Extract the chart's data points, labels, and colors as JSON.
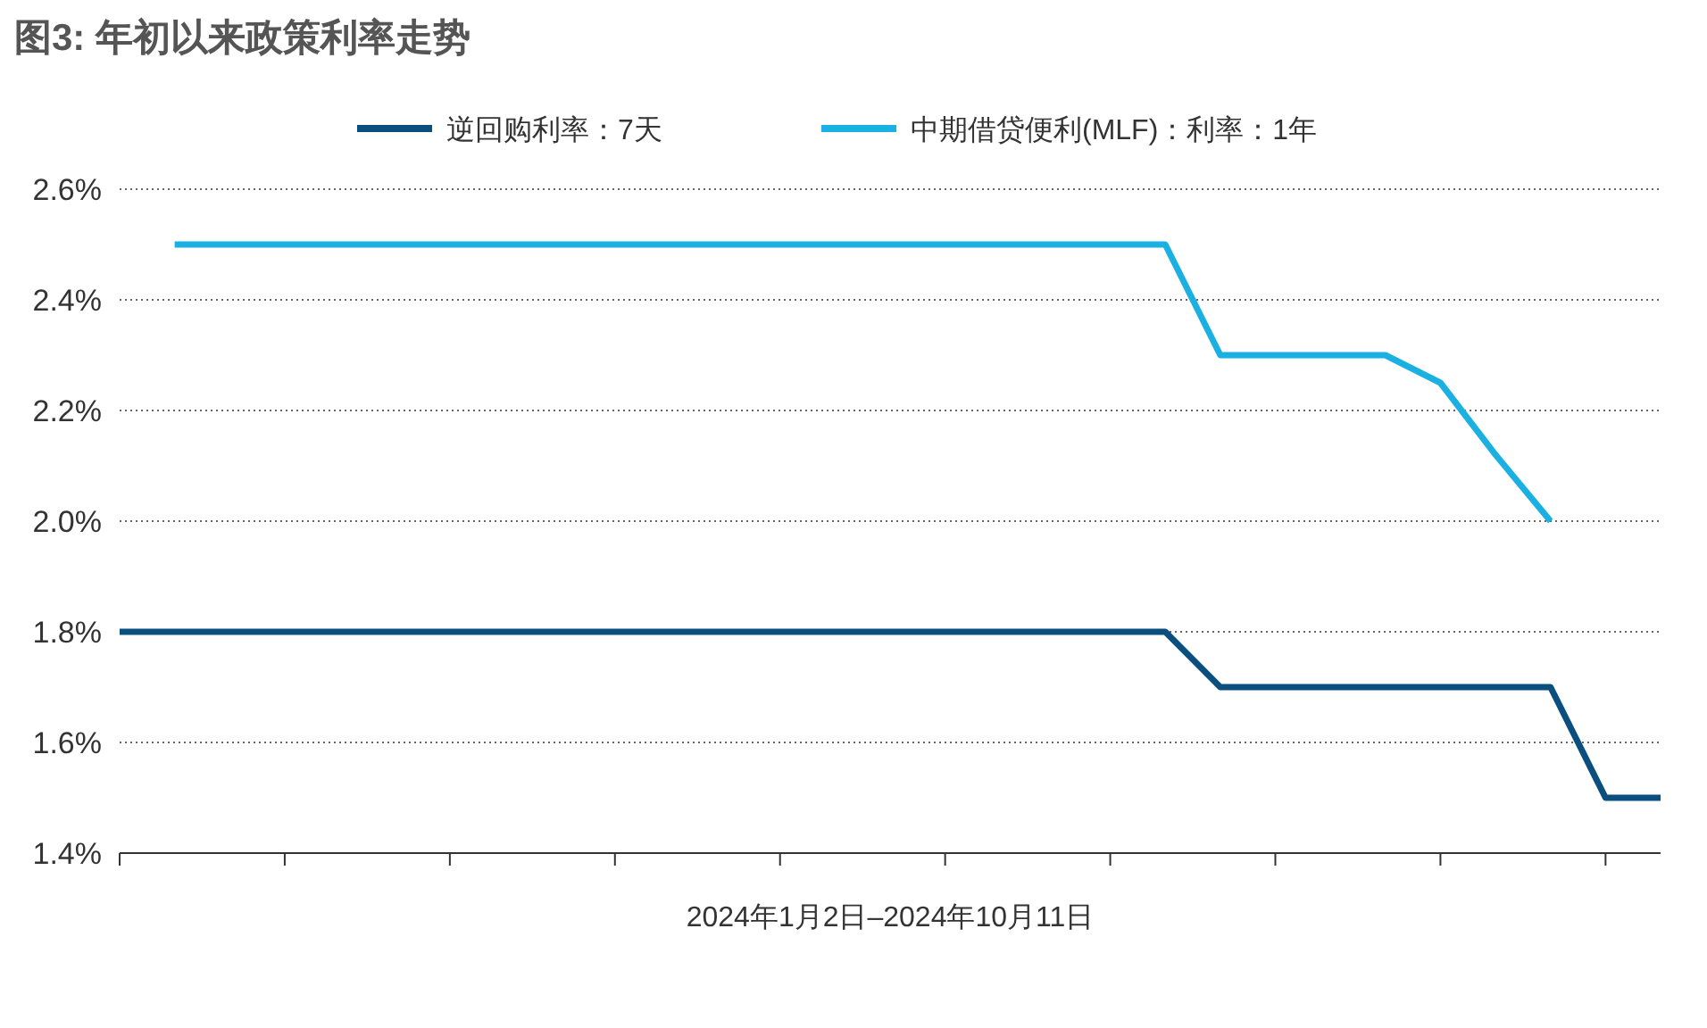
{
  "chart_data": {
    "type": "line",
    "title": "图3: 年初以来政策利率走势",
    "xlabel": "2024年1月2日–2024年10月11日",
    "categories": [
      null,
      null,
      null,
      null,
      null,
      null,
      null,
      null,
      null,
      null,
      null,
      null,
      null,
      null,
      null,
      null,
      null,
      null,
      null,
      null,
      null,
      null,
      null,
      null,
      null,
      null,
      null,
      null,
      null
    ],
    "ylim": [
      1.4,
      2.6
    ],
    "yticks": [
      {
        "value": 1.4,
        "label": "1.4%"
      },
      {
        "value": 1.6,
        "label": "1.6%"
      },
      {
        "value": 1.8,
        "label": "1.8%"
      },
      {
        "value": 2.0,
        "label": "2.0%"
      },
      {
        "value": 2.2,
        "label": "2.2%"
      },
      {
        "value": 2.4,
        "label": "2.4%"
      },
      {
        "value": 2.6,
        "label": "2.6%"
      }
    ],
    "grid": "y",
    "legend": "top",
    "line_style": "solid",
    "series": [
      {
        "name": "逆回购利率：7天",
        "color": "#0b4f7f",
        "values": [
          1.8,
          1.8,
          1.8,
          1.8,
          1.8,
          1.8,
          1.8,
          1.8,
          1.8,
          1.8,
          1.8,
          1.8,
          1.8,
          1.8,
          1.8,
          1.8,
          1.8,
          1.8,
          1.8,
          1.8,
          1.7,
          1.7,
          1.7,
          1.7,
          1.7,
          1.7,
          1.7,
          1.5,
          1.5
        ]
      },
      {
        "name": "中期借贷便利(MLF)：利率：1年",
        "color": "#1ab1e2",
        "values": [
          null,
          2.5,
          2.5,
          2.5,
          2.5,
          2.5,
          2.5,
          2.5,
          2.5,
          2.5,
          2.5,
          2.5,
          2.5,
          2.5,
          2.5,
          2.5,
          2.5,
          2.5,
          2.5,
          2.5,
          2.3,
          2.3,
          2.3,
          2.3,
          2.25,
          2.12,
          2.0,
          null,
          null
        ]
      }
    ]
  }
}
